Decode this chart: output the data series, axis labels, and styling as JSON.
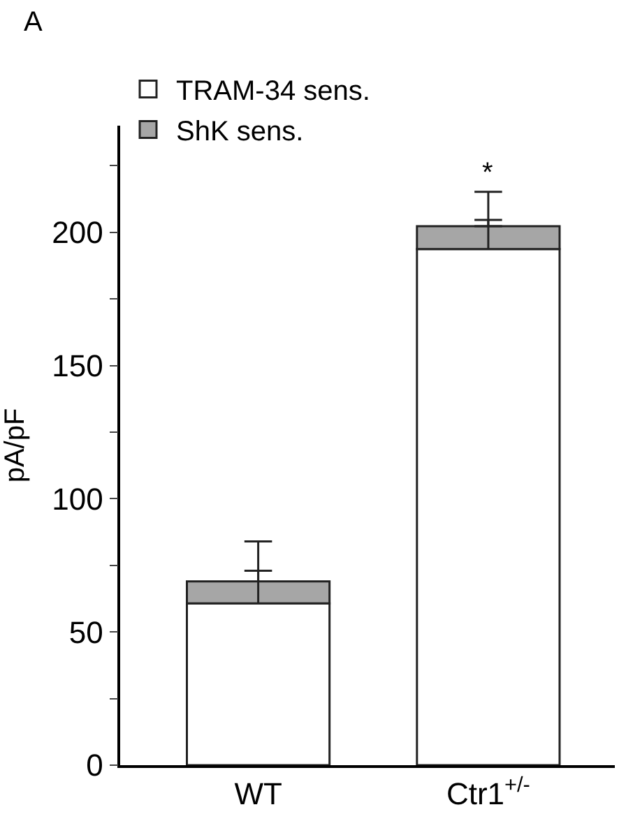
{
  "chart_data": {
    "type": "bar",
    "stacked": true,
    "ylabel": "pA/pF",
    "categories": [
      "WT",
      "Ctr1$^{+/-}$"
    ],
    "series": [
      {
        "name": "TRAM-34 sens.",
        "color": "#ffffff",
        "values": [
          60.7,
          193.7
        ],
        "errors": [
          [
            60.7,
            73
          ],
          [
            193.7,
            204.6
          ]
        ]
      },
      {
        "name": "ShK sens.",
        "color": "#a6a6a6",
        "values": [
          8.3,
          8.6
        ],
        "errors": [
          [
            69,
            84
          ],
          [
            202.3,
            215.2
          ]
        ]
      }
    ],
    "ylim": [
      0,
      240
    ],
    "yticks": [
      0,
      {
        "value": 25,
        "label": null
      },
      50,
      {
        "value": 75,
        "label": null
      },
      100,
      {
        "value": 125,
        "label": null
      },
      150,
      {
        "value": 175,
        "label": null
      },
      200,
      {
        "value": 225,
        "label": null
      }
    ],
    "legend": "top left",
    "annotations": [
      "A",
      "*"
    ]
  }
}
